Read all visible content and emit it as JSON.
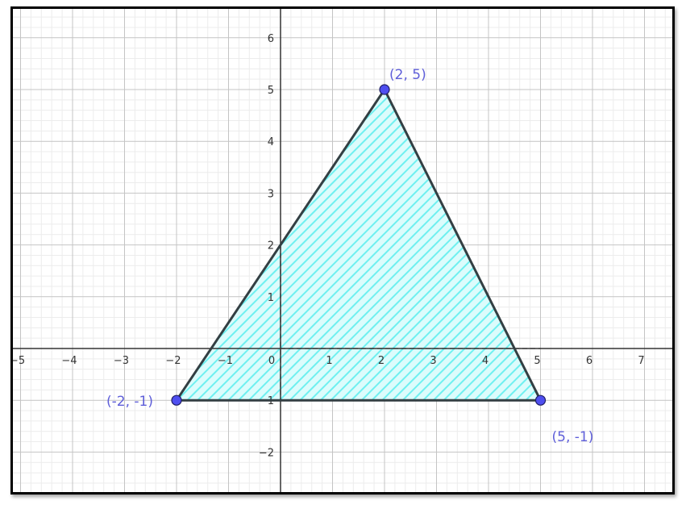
{
  "colors": {
    "minor_grid": "#ececec",
    "major_grid": "#c4c4c4",
    "axis": "#333333",
    "triangle_edge": "#333f43",
    "hatch": "#6ff0f0",
    "fill": "#dcfcfc",
    "point_fill": "#4f4ff0",
    "point_label": "#5f5fd9"
  },
  "axes": {
    "x_range": [
      -5,
      7.7
    ],
    "y_range": [
      -2.8,
      6.5
    ],
    "x_ticks": [
      "-5",
      "-4",
      "-3",
      "-2",
      "-1",
      "0",
      "1",
      "2",
      "3",
      "4",
      "5",
      "6",
      "7"
    ],
    "y_ticks": [
      "-2",
      "-1",
      "1",
      "2",
      "3",
      "4",
      "5",
      "6"
    ],
    "grid": true
  },
  "triangle": {
    "vertices": [
      {
        "x": -2,
        "y": -1,
        "label": "(-2, -1)"
      },
      {
        "x": 2,
        "y": 5,
        "label": "(2, 5)"
      },
      {
        "x": 5,
        "y": -1,
        "label": "(5, -1)"
      }
    ],
    "fill_style": "hatched"
  },
  "guides": [
    {
      "from": [
        0,
        0
      ],
      "to": [
        5,
        0
      ],
      "style": "dashed"
    },
    {
      "from": [
        0,
        2
      ],
      "to": [
        0,
        -1
      ],
      "style": "dashed"
    }
  ]
}
